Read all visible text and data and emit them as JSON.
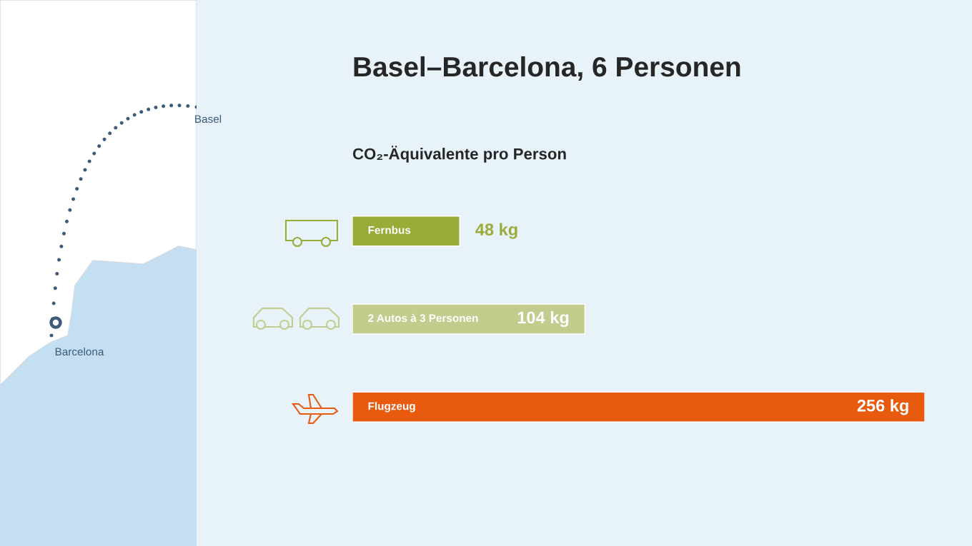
{
  "chart_data": {
    "type": "bar",
    "orientation": "horizontal",
    "title": "Basel–Barcelona, 6 Personen",
    "subtitle": "CO₂-Äquivalente pro Person",
    "categories": [
      "Fernbus",
      "2 Autos à 3 Personen",
      "Flugzeug"
    ],
    "values": [
      48,
      104,
      256
    ],
    "colors": [
      "#9aab37",
      "#c3cc8c",
      "#e85b0f"
    ],
    "value_labels": [
      "48 kg",
      "104 kg",
      "256 kg"
    ],
    "annotations": [
      "Basel",
      "Barcelona"
    ],
    "tick_labels": false
  }
}
